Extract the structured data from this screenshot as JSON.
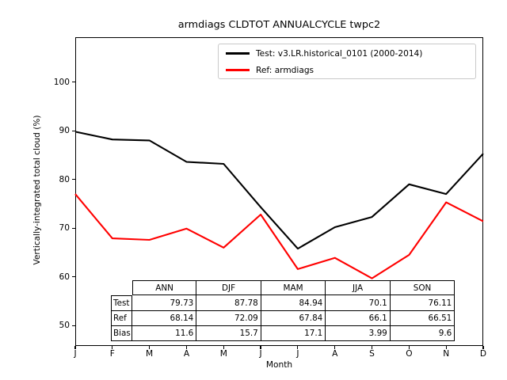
{
  "chart_data": {
    "type": "line",
    "title": "armdiags CLDTOT ANNUALCYCLE twpc2",
    "xlabel": "Month",
    "ylabel": "Vertically-integrated total cloud (%)",
    "x": [
      "J",
      "F",
      "M",
      "A",
      "M",
      "J",
      "J",
      "A",
      "S",
      "O",
      "N",
      "D"
    ],
    "yticks": [
      50,
      60,
      70,
      80,
      90,
      100
    ],
    "ylim": [
      45.9,
      109.2
    ],
    "grid": false,
    "legend_position": "upper center-right, inside axes",
    "series": [
      {
        "name": "Test: v3.LR.historical_0101 (2000-2014)",
        "color": "#000000",
        "values": [
          89.8,
          88.2,
          88.0,
          83.6,
          83.2,
          74.3,
          65.8,
          70.2,
          72.3,
          79.0,
          77.0,
          85.3
        ]
      },
      {
        "name": "Ref: armdiags",
        "color": "#ff0000",
        "values": [
          77.0,
          67.9,
          67.6,
          69.9,
          66.0,
          72.8,
          61.6,
          63.9,
          59.7,
          64.5,
          75.3,
          71.4
        ]
      }
    ],
    "stats_table": {
      "columns": [
        "ANN",
        "DJF",
        "MAM",
        "JJA",
        "SON"
      ],
      "rows": [
        {
          "label": "Test",
          "values": [
            "79.73",
            "87.78",
            "84.94",
            "70.1",
            "76.11"
          ]
        },
        {
          "label": "Ref",
          "values": [
            "68.14",
            "72.09",
            "67.84",
            "66.1",
            "66.51"
          ]
        },
        {
          "label": "Bias",
          "values": [
            "11.6",
            "15.7",
            "17.1",
            "3.99",
            "9.6"
          ]
        }
      ]
    }
  }
}
